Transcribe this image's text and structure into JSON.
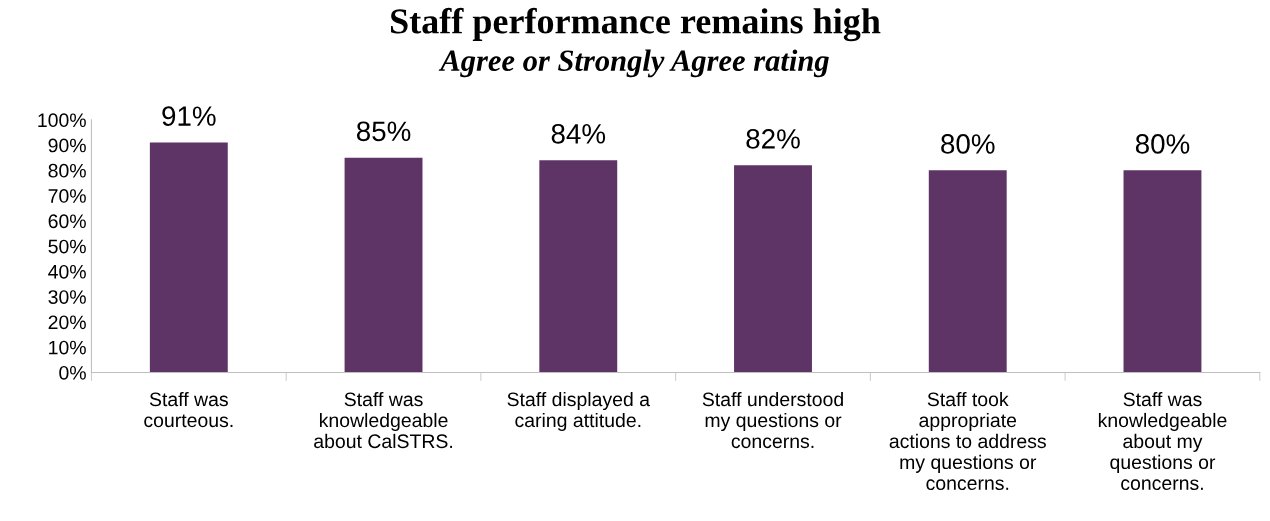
{
  "chart_data": {
    "type": "bar",
    "title": "Staff performance remains high",
    "subtitle": "Agree or Strongly Agree rating",
    "categories": [
      "Staff was\ncourteous.",
      "Staff was\nknowledgeable\nabout CalSTRS.",
      "Staff displayed a\ncaring attitude.",
      "Staff understood\nmy questions or\nconcerns.",
      "Staff took\nappropriate\nactions to address\nmy questions or\nconcerns.",
      "Staff was\nknowledgeable\nabout my\nquestions or\nconcerns."
    ],
    "values": [
      91,
      85,
      84,
      82,
      80,
      80
    ],
    "value_labels": [
      "91%",
      "85%",
      "84%",
      "82%",
      "80%",
      "80%"
    ],
    "color": "#5e3365",
    "ylim": [
      0,
      100
    ],
    "yticks": [
      {
        "value": 0,
        "label": "0%"
      },
      {
        "value": 10,
        "label": "10%"
      },
      {
        "value": 20,
        "label": "20%"
      },
      {
        "value": 30,
        "label": "30%"
      },
      {
        "value": 40,
        "label": "40%"
      },
      {
        "value": 50,
        "label": "50%"
      },
      {
        "value": 60,
        "label": "60%"
      },
      {
        "value": 70,
        "label": "70%"
      },
      {
        "value": 80,
        "label": "80%"
      },
      {
        "value": 90,
        "label": "90%"
      },
      {
        "value": 100,
        "label": "100%"
      }
    ],
    "grid": false,
    "legend": false
  }
}
